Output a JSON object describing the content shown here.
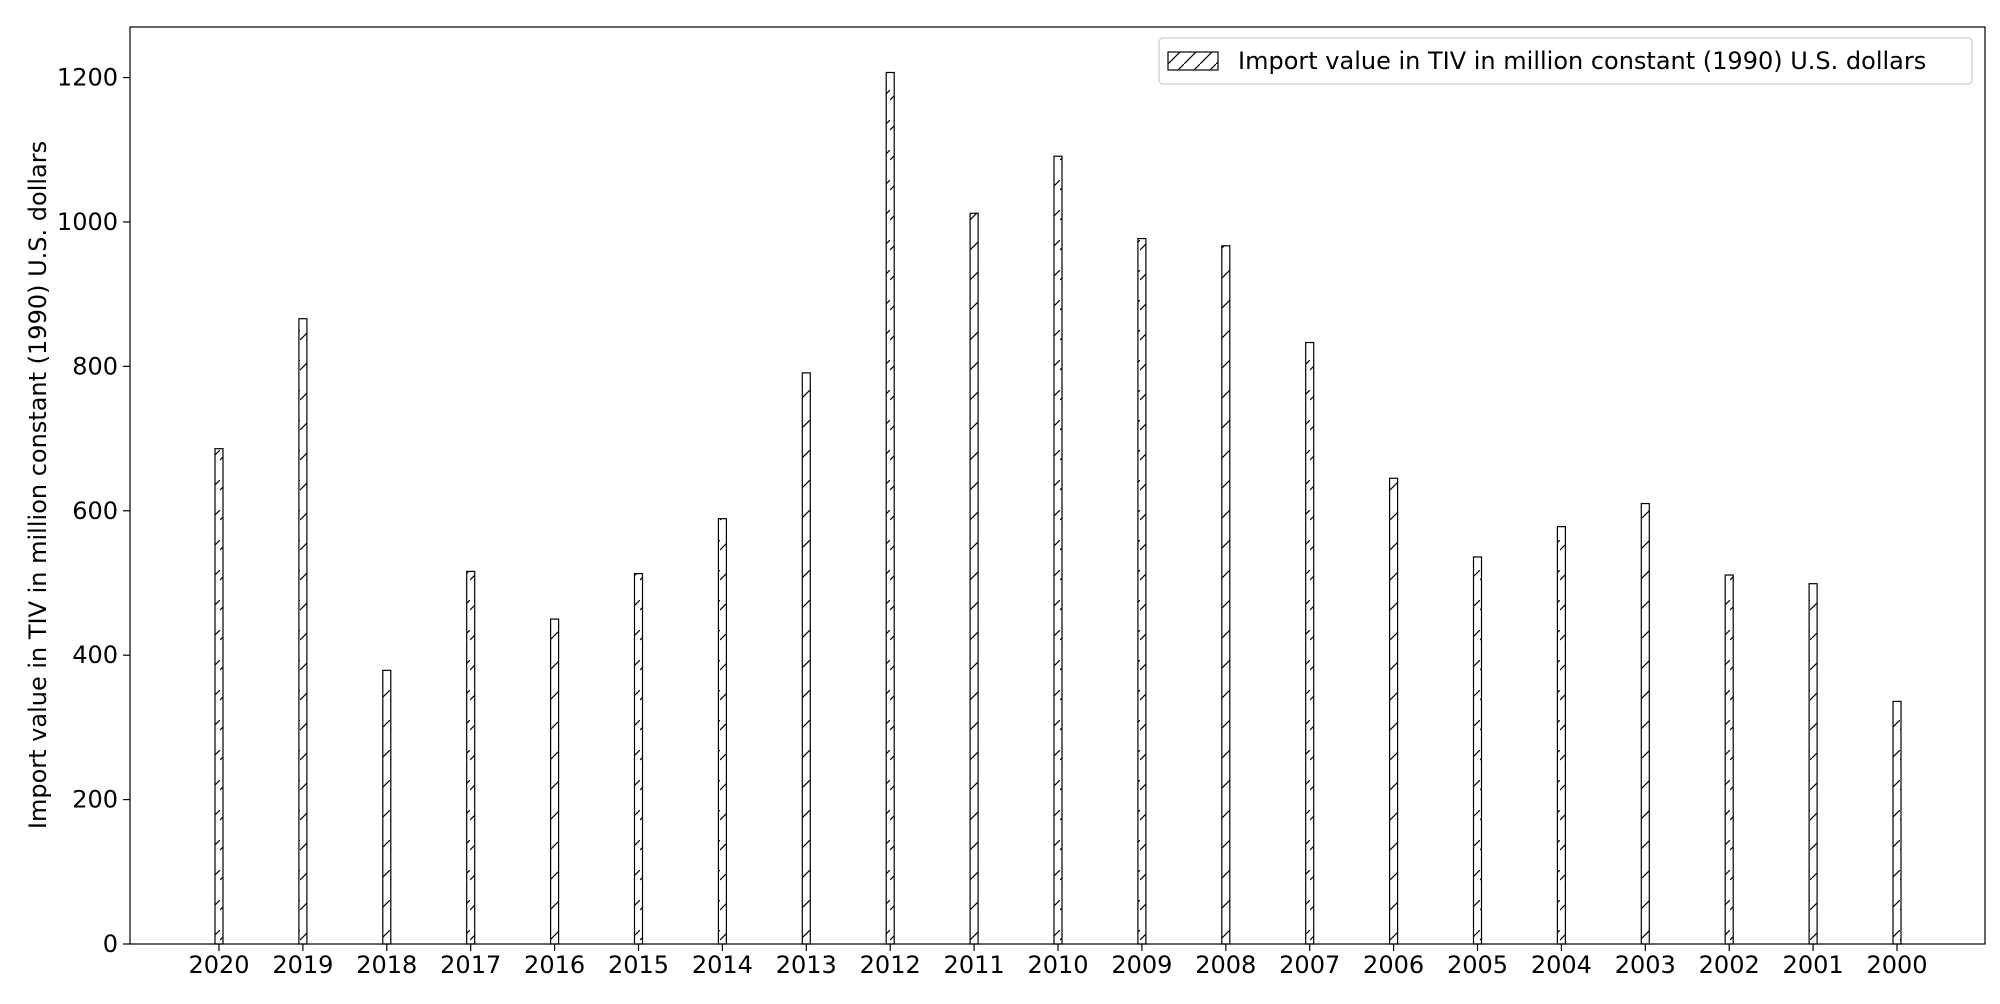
{
  "chart_data": {
    "type": "bar",
    "title": "",
    "xlabel": "",
    "ylabel": "Import value in TIV in million constant (1990) U.S. dollars",
    "categories": [
      "2020",
      "2019",
      "2018",
      "2017",
      "2016",
      "2015",
      "2014",
      "2013",
      "2012",
      "2011",
      "2010",
      "2009",
      "2008",
      "2007",
      "2006",
      "2005",
      "2004",
      "2003",
      "2002",
      "2001",
      "2000"
    ],
    "series": [
      {
        "name": "Import value in TIV in million constant (1990) U.S. dollars",
        "values": [
          686,
          866,
          379,
          516,
          450,
          513,
          589,
          791,
          1207,
          1012,
          1091,
          977,
          967,
          833,
          645,
          536,
          578,
          610,
          511,
          499,
          336
        ]
      }
    ],
    "ylim": [
      0,
      1270
    ],
    "yticks": [
      0,
      200,
      400,
      600,
      800,
      1000,
      1200
    ],
    "grid": false,
    "legend_position": "top-right",
    "bar_fill": "#ffffff",
    "bar_edge": "#000000",
    "bar_hatch": "diagonal"
  }
}
